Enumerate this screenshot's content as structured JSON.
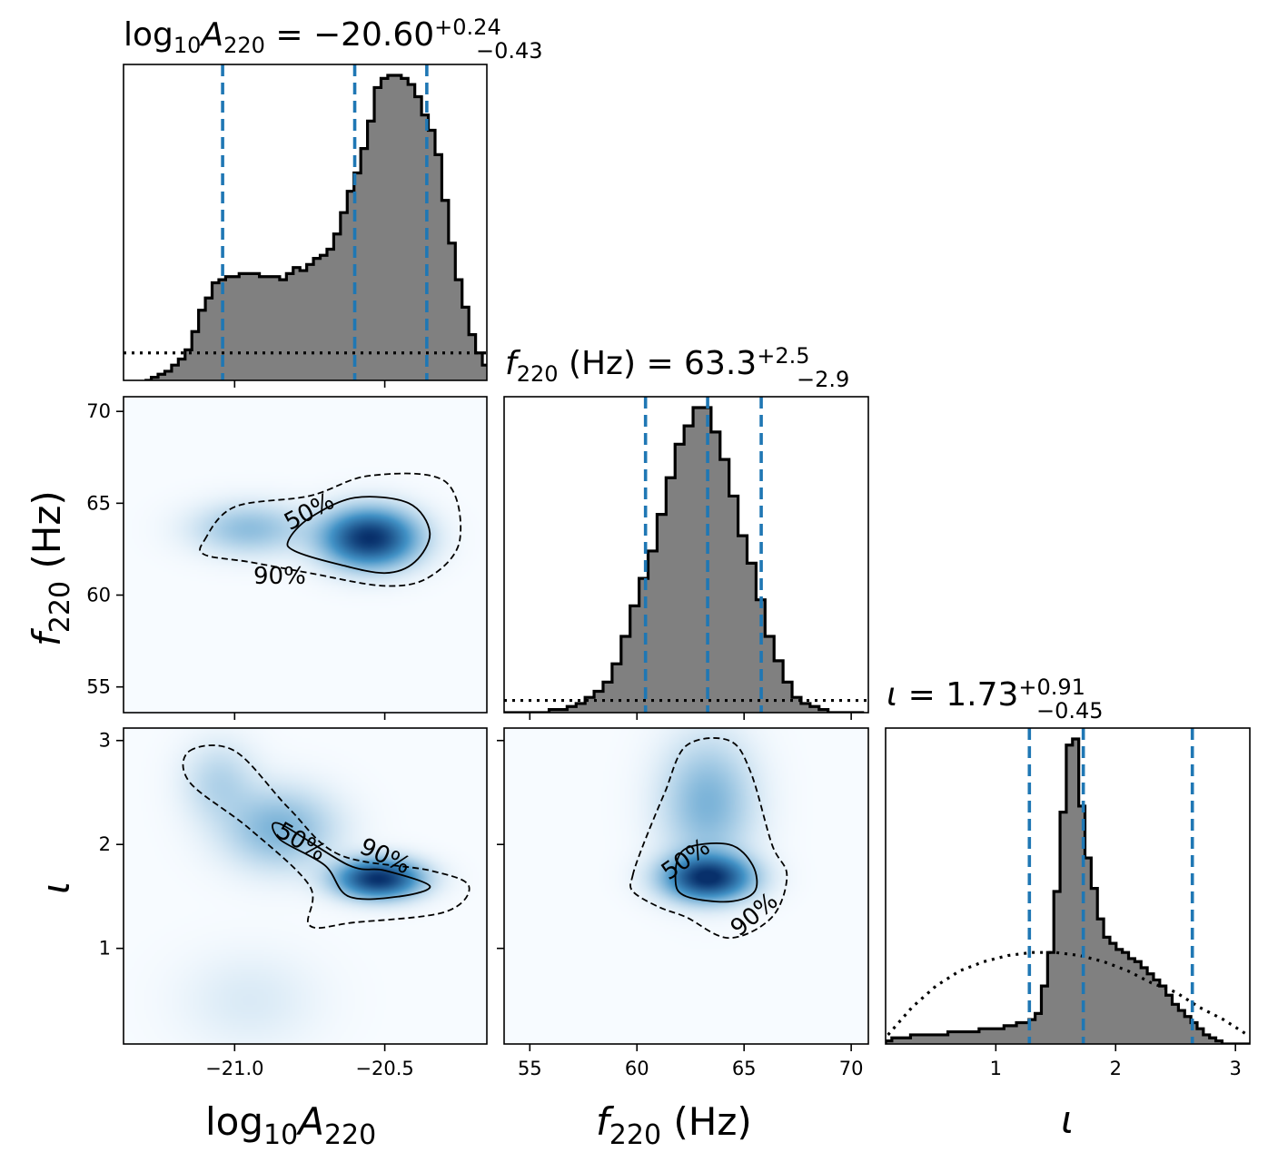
{
  "chart_data": [
    {
      "type": "histogram",
      "panel": "A-A",
      "title": {
        "pre": "log",
        "pre_sub": "10",
        "var": "A",
        "var_sub": "220",
        "eq": " = −20.60",
        "plus": "+0.24",
        "minus": "−0.43"
      },
      "x_range": [
        -21.37,
        -20.16
      ],
      "quantiles": [
        -21.04,
        -20.6,
        -20.36
      ],
      "posterior_bins": {
        "edges_start": -21.3,
        "bin_width": 0.0225,
        "heights": [
          0,
          0.01,
          0.02,
          0.03,
          0.05,
          0.07,
          0.1,
          0.16,
          0.23,
          0.27,
          0.32,
          0.33,
          0.34,
          0.34,
          0.35,
          0.35,
          0.35,
          0.34,
          0.34,
          0.34,
          0.33,
          0.35,
          0.37,
          0.36,
          0.38,
          0.4,
          0.41,
          0.43,
          0.48,
          0.55,
          0.62,
          0.68,
          0.76,
          0.85,
          0.96,
          0.99,
          1.0,
          1.0,
          0.99,
          0.97,
          0.93,
          0.87,
          0.82,
          0.74,
          0.59,
          0.45,
          0.33,
          0.24,
          0.15,
          0.09,
          0.05,
          0.02,
          0.01
        ]
      },
      "prior_level": 0.09
    },
    {
      "type": "histogram",
      "panel": "f-f",
      "title": {
        "var": "f",
        "var_sub": "220",
        "unit": " (Hz)",
        "eq": " = 63.3",
        "plus": "+2.5",
        "minus": "−2.9"
      },
      "x_range": [
        53.8,
        70.8
      ],
      "quantiles": [
        60.4,
        63.3,
        65.8
      ],
      "posterior_bins": {
        "edges_start": 53.8,
        "bin_width": 0.42,
        "heights": [
          0,
          0,
          0,
          0,
          0,
          0.01,
          0.01,
          0.02,
          0.03,
          0.05,
          0.07,
          0.1,
          0.16,
          0.25,
          0.35,
          0.44,
          0.53,
          0.65,
          0.77,
          0.88,
          0.94,
          1.0,
          1.0,
          0.92,
          0.83,
          0.71,
          0.58,
          0.49,
          0.37,
          0.25,
          0.17,
          0.1,
          0.05,
          0.03,
          0.02,
          0.01,
          0,
          0,
          0,
          0
        ]
      },
      "prior_level": 0.04
    },
    {
      "type": "histogram",
      "panel": "i-i",
      "title": {
        "var": "ι",
        "eq": " = 1.73",
        "plus": "+0.91",
        "minus": "−0.45"
      },
      "x_range": [
        0.08,
        3.12
      ],
      "quantiles": [
        1.28,
        1.73,
        2.64
      ],
      "posterior_bins": {
        "edges_start": 0.08,
        "bin_width": 0.052,
        "heights": [
          0.01,
          0.02,
          0.02,
          0.02,
          0.03,
          0.03,
          0.03,
          0.03,
          0.03,
          0.03,
          0.04,
          0.04,
          0.04,
          0.04,
          0.04,
          0.05,
          0.05,
          0.05,
          0.05,
          0.06,
          0.06,
          0.07,
          0.07,
          0.08,
          0.1,
          0.19,
          0.3,
          0.5,
          0.76,
          0.98,
          1.0,
          0.78,
          0.61,
          0.51,
          0.41,
          0.35,
          0.33,
          0.31,
          0.3,
          0.28,
          0.27,
          0.25,
          0.23,
          0.21,
          0.19,
          0.16,
          0.13,
          0.11,
          0.09,
          0.07,
          0.05,
          0.03,
          0.02,
          0.01,
          0,
          0,
          0,
          0,
          0
        ]
      },
      "prior_curve": [
        [
          0.1,
          0.03
        ],
        [
          0.3,
          0.12
        ],
        [
          0.5,
          0.19
        ],
        [
          0.7,
          0.24
        ],
        [
          0.9,
          0.27
        ],
        [
          1.1,
          0.29
        ],
        [
          1.3,
          0.3
        ],
        [
          1.5,
          0.3
        ],
        [
          1.7,
          0.29
        ],
        [
          1.9,
          0.27
        ],
        [
          2.1,
          0.24
        ],
        [
          2.3,
          0.2
        ],
        [
          2.5,
          0.17
        ],
        [
          2.7,
          0.12
        ],
        [
          2.9,
          0.08
        ],
        [
          3.1,
          0.03
        ]
      ]
    },
    {
      "type": "heatmap",
      "panel": "A-f",
      "x_range": [
        -21.37,
        -20.16
      ],
      "y_range": [
        53.6,
        70.8
      ],
      "x_ticks": [
        {
          "v": -21.0,
          "label": "−21.0"
        },
        {
          "v": -20.5,
          "label": "−20.5"
        }
      ],
      "y_ticks": [
        {
          "v": 55,
          "label": "55"
        },
        {
          "v": 60,
          "label": "60"
        },
        {
          "v": 65,
          "label": "65"
        },
        {
          "v": 70,
          "label": "70"
        }
      ],
      "blobs": [
        {
          "x": -20.55,
          "y": 63.1,
          "sx": 0.1,
          "sy": 1.0,
          "w": 1.0
        },
        {
          "x": -20.95,
          "y": 63.6,
          "sx": 0.12,
          "sy": 0.9,
          "w": 0.25
        }
      ],
      "contours": [
        {
          "label": "50%",
          "style": "solid",
          "points": [
            [
              -20.82,
              63.0
            ],
            [
              -20.75,
              64.2
            ],
            [
              -20.6,
              65.3
            ],
            [
              -20.42,
              65.0
            ],
            [
              -20.35,
              63.4
            ],
            [
              -20.4,
              61.8
            ],
            [
              -20.5,
              61.2
            ],
            [
              -20.66,
              61.7
            ],
            [
              -20.8,
              62.4
            ]
          ]
        },
        {
          "label": "90%",
          "style": "dashed",
          "points": [
            [
              -21.1,
              63.0
            ],
            [
              -21.0,
              64.8
            ],
            [
              -20.75,
              65.4
            ],
            [
              -20.55,
              66.5
            ],
            [
              -20.3,
              66.2
            ],
            [
              -20.25,
              63.0
            ],
            [
              -20.35,
              61.0
            ],
            [
              -20.5,
              60.5
            ],
            [
              -20.75,
              61.2
            ],
            [
              -20.95,
              61.8
            ],
            [
              -21.1,
              62.2
            ]
          ]
        }
      ],
      "contour_labels": [
        {
          "text": "50%",
          "x": -20.75,
          "y": 64.5,
          "rot": -28
        },
        {
          "text": "90%",
          "x": -20.85,
          "y": 61.0,
          "rot": 0
        }
      ]
    },
    {
      "type": "heatmap",
      "panel": "A-i",
      "x_range": [
        -21.37,
        -20.16
      ],
      "y_range": [
        0.08,
        3.12
      ],
      "x_ticks": [
        {
          "v": -21.0,
          "label": "−21.0"
        },
        {
          "v": -20.5,
          "label": "−20.5"
        }
      ],
      "x_tick_labels": [
        "−21.0",
        "−20.5"
      ],
      "y_ticks": [
        {
          "v": 1,
          "label": "1"
        },
        {
          "v": 2,
          "label": "2"
        },
        {
          "v": 3,
          "label": "3"
        }
      ],
      "blobs": [
        {
          "x": -20.52,
          "y": 1.67,
          "sx": 0.09,
          "sy": 0.12,
          "w": 1.0
        },
        {
          "x": -20.85,
          "y": 2.15,
          "sx": 0.12,
          "sy": 0.25,
          "w": 0.3
        },
        {
          "x": -21.05,
          "y": 2.6,
          "sx": 0.08,
          "sy": 0.25,
          "w": 0.15
        },
        {
          "x": -20.95,
          "y": 0.5,
          "sx": 0.15,
          "sy": 0.3,
          "w": 0.06
        }
      ],
      "contours": [
        {
          "label": "50%",
          "style": "solid",
          "points": [
            [
              -20.85,
              2.2
            ],
            [
              -20.62,
              1.8
            ],
            [
              -20.5,
              1.75
            ],
            [
              -20.35,
              1.6
            ],
            [
              -20.45,
              1.5
            ],
            [
              -20.62,
              1.5
            ],
            [
              -20.7,
              1.8
            ],
            [
              -20.85,
              2.05
            ]
          ]
        },
        {
          "label": "90%",
          "style": "dashed",
          "points": [
            [
              -21.15,
              2.9
            ],
            [
              -21.0,
              2.9
            ],
            [
              -20.82,
              2.35
            ],
            [
              -20.65,
              1.9
            ],
            [
              -20.35,
              1.75
            ],
            [
              -20.22,
              1.6
            ],
            [
              -20.3,
              1.35
            ],
            [
              -20.6,
              1.25
            ],
            [
              -20.75,
              1.22
            ],
            [
              -20.75,
              1.6
            ],
            [
              -20.95,
              2.15
            ],
            [
              -21.15,
              2.6
            ]
          ]
        }
      ],
      "contour_labels": [
        {
          "text": "50%",
          "x": -20.78,
          "y": 2.02,
          "rot": 30
        },
        {
          "text": "90%",
          "x": -20.5,
          "y": 1.88,
          "rot": 25
        }
      ]
    },
    {
      "type": "heatmap",
      "panel": "f-i",
      "x_range": [
        53.8,
        70.8
      ],
      "y_range": [
        0.08,
        3.12
      ],
      "x_ticks": [
        {
          "v": 55,
          "label": "55"
        },
        {
          "v": 60,
          "label": "60"
        },
        {
          "v": 65,
          "label": "65"
        },
        {
          "v": 70,
          "label": "70"
        }
      ],
      "x_tick_labels": [
        "55",
        "60",
        "65",
        "70"
      ],
      "y_ticks": [
        {
          "v": 1,
          "label": "1"
        },
        {
          "v": 2,
          "label": "2"
        },
        {
          "v": 3,
          "label": "3"
        }
      ],
      "blobs": [
        {
          "x": 63.3,
          "y": 1.68,
          "sx": 1.3,
          "sy": 0.14,
          "w": 1.0
        },
        {
          "x": 63.3,
          "y": 2.4,
          "sx": 1.4,
          "sy": 0.4,
          "w": 0.3
        }
      ],
      "contours": [
        {
          "label": "50%",
          "style": "solid",
          "points": [
            [
              61.8,
              1.65
            ],
            [
              62.2,
              1.95
            ],
            [
              64.3,
              2.0
            ],
            [
              65.4,
              1.8
            ],
            [
              65.5,
              1.55
            ],
            [
              64.3,
              1.45
            ],
            [
              62.3,
              1.5
            ]
          ]
        },
        {
          "label": "90%",
          "style": "dashed",
          "points": [
            [
              59.8,
              1.7
            ],
            [
              60.3,
              2.0
            ],
            [
              61.3,
              2.5
            ],
            [
              62.3,
              2.95
            ],
            [
              64.3,
              3.0
            ],
            [
              65.3,
              2.7
            ],
            [
              66.3,
              2.0
            ],
            [
              67.0,
              1.7
            ],
            [
              66.3,
              1.3
            ],
            [
              64.3,
              1.1
            ],
            [
              62.3,
              1.3
            ],
            [
              61.0,
              1.4
            ],
            [
              59.8,
              1.55
            ]
          ]
        }
      ],
      "contour_labels": [
        {
          "text": "50%",
          "x": 62.3,
          "y": 1.85,
          "rot": -35
        },
        {
          "text": "90%",
          "x": 65.5,
          "y": 1.32,
          "rot": -40
        }
      ]
    }
  ],
  "axis_labels": {
    "bottom_A": {
      "pre": "log",
      "pre_sub": "10",
      "var": "A",
      "var_sub": "220"
    },
    "bottom_f": {
      "var": "f",
      "var_sub": "220",
      "unit": " (Hz)"
    },
    "bottom_i": {
      "var": "ι"
    },
    "left_f": {
      "var": "f",
      "var_sub": "220",
      "unit": " (Hz)"
    },
    "left_i": {
      "var": "ι"
    }
  },
  "colors": {
    "hist_fill": "#808080",
    "quantile_line": "#1f77b4",
    "heat_low": "#f7fbff",
    "heat_high": "#08306b"
  }
}
